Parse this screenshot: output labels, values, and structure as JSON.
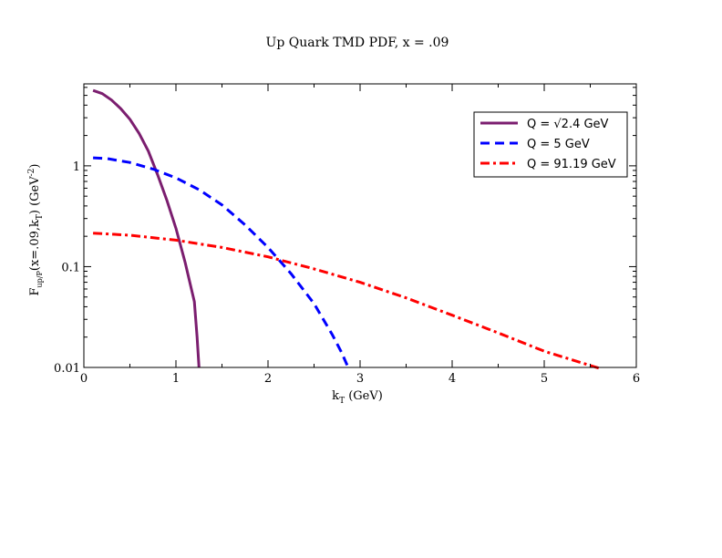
{
  "chart_data": {
    "type": "line",
    "title": "Up Quark TMD PDF, x = .09",
    "xlabel": {
      "main": "k",
      "sub": "T",
      "rest": " (GeV)"
    },
    "ylabel": {
      "p1": "F",
      "p1sub": "up/P",
      "p2": "(x=.09,k",
      "p2sub": "T",
      "p3": ") (GeV",
      "p3sup": "-2",
      "p4": ")"
    },
    "xlim": [
      0,
      6
    ],
    "ylim": [
      0.01,
      6.5
    ],
    "yscale": "log",
    "x_ticks": [
      0,
      1,
      2,
      3,
      4,
      5,
      6
    ],
    "x_tick_labels": [
      "0",
      "1",
      "2",
      "3",
      "4",
      "5",
      "6"
    ],
    "y_ticks": [
      0.01,
      0.1,
      1
    ],
    "y_tick_labels": [
      "0.01",
      "0.1",
      "1"
    ],
    "legend_position": "top-right",
    "series": [
      {
        "name": "Q = √2.4 GeV",
        "color": "#7b1e6f",
        "style": "solid",
        "points": [
          [
            0.1,
            5.6
          ],
          [
            0.2,
            5.2
          ],
          [
            0.3,
            4.5
          ],
          [
            0.4,
            3.7
          ],
          [
            0.5,
            2.9
          ],
          [
            0.6,
            2.1
          ],
          [
            0.7,
            1.4
          ],
          [
            0.8,
            0.82
          ],
          [
            0.9,
            0.46
          ],
          [
            1.0,
            0.24
          ],
          [
            1.1,
            0.11
          ],
          [
            1.2,
            0.045
          ],
          [
            1.23,
            0.02
          ],
          [
            1.25,
            0.01
          ]
        ]
      },
      {
        "name": "Q = 5 GeV",
        "color": "#0000ff",
        "style": "dashed",
        "points": [
          [
            0.1,
            1.2
          ],
          [
            0.25,
            1.18
          ],
          [
            0.5,
            1.08
          ],
          [
            0.75,
            0.93
          ],
          [
            1.0,
            0.76
          ],
          [
            1.25,
            0.58
          ],
          [
            1.5,
            0.41
          ],
          [
            1.75,
            0.26
          ],
          [
            2.0,
            0.155
          ],
          [
            2.25,
            0.085
          ],
          [
            2.5,
            0.043
          ],
          [
            2.7,
            0.021
          ],
          [
            2.8,
            0.014
          ],
          [
            2.87,
            0.01
          ]
        ]
      },
      {
        "name": "Q = 91.19 GeV",
        "color": "#ff0000",
        "style": "dashdot",
        "points": [
          [
            0.1,
            0.215
          ],
          [
            0.5,
            0.205
          ],
          [
            1.0,
            0.183
          ],
          [
            1.5,
            0.155
          ],
          [
            2.0,
            0.125
          ],
          [
            2.5,
            0.095
          ],
          [
            3.0,
            0.07
          ],
          [
            3.5,
            0.049
          ],
          [
            4.0,
            0.033
          ],
          [
            4.5,
            0.022
          ],
          [
            5.0,
            0.0145
          ],
          [
            5.6,
            0.0098
          ]
        ]
      }
    ]
  }
}
